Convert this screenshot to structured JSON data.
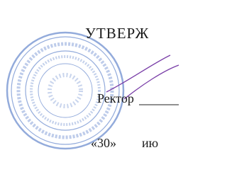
{
  "document": {
    "approval": "УТВЕРЖ",
    "signer": "Ректор",
    "day": "«30»",
    "month": "ию"
  }
}
